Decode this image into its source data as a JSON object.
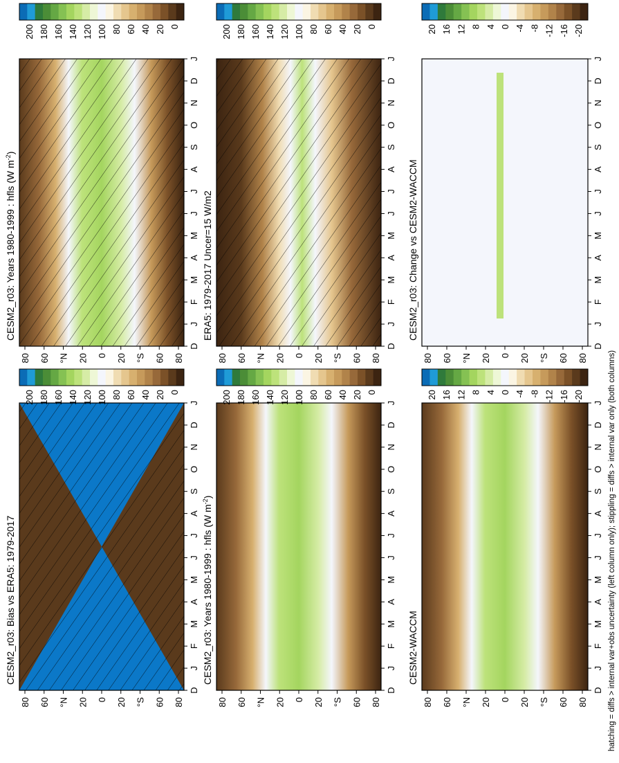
{
  "caption": "hatching = diffs > internal var+obs uncertainty (left column only); stippling = diffs > internal var only (both columns)",
  "colors": {
    "scale": [
      "#3c2411",
      "#5a3a1c",
      "#7b5128",
      "#97693a",
      "#b1834a",
      "#c69a5b",
      "#d7b06f",
      "#e5c68e",
      "#f0dcb2",
      "#fbf5e3",
      "#f4f6fc",
      "#eef7d6",
      "#d6eca6",
      "#bde27b",
      "#a4d55f",
      "#85c153",
      "#65a844",
      "#4b8d37",
      "#2f7a3b",
      "#1f9bd7",
      "#0b6cb6"
    ]
  },
  "colorbars": [
    {
      "name": "absolute",
      "labels": [
        "200",
        "180",
        "160",
        "140",
        "120",
        "100",
        "80",
        "60",
        "40",
        "20",
        "0"
      ]
    },
    {
      "name": "difference",
      "labels": [
        "20",
        "16",
        "12",
        "8",
        "4",
        "0",
        "-4",
        "-8",
        "-12",
        "-16",
        "-20"
      ]
    }
  ],
  "chart_data": [
    {
      "type": "heatmap",
      "title": "CESM2_r03: Years 1980-1999 : hfls (W m",
      "title_sup": "-2",
      "title_tail": ")",
      "x_categories": [
        "D",
        "J",
        "F",
        "M",
        "A",
        "M",
        "J",
        "J",
        "A",
        "S",
        "O",
        "N",
        "D",
        "J"
      ],
      "y_ticks": [
        "80",
        "60",
        "°N",
        "20",
        "0",
        "20",
        "°S",
        "60",
        "80"
      ],
      "colorbar": "absolute",
      "hatching": "lines"
    },
    {
      "type": "heatmap",
      "title": "CESM2_r03: Years 1980-1999 : hfls (W m",
      "title_sup": "-2",
      "title_tail": ")",
      "x_categories": [
        "D",
        "J",
        "F",
        "M",
        "A",
        "M",
        "J",
        "J",
        "A",
        "S",
        "O",
        "N",
        "D",
        "J"
      ],
      "y_ticks": [
        "80",
        "60",
        "°N",
        "20",
        "0",
        "20",
        "°S",
        "60",
        "80"
      ],
      "colorbar": "absolute",
      "hatching": "none"
    },
    {
      "type": "heatmap",
      "title": "ERA5: 1979-2017 Uncer=15 W/m2",
      "title_sup": "",
      "title_tail": "",
      "x_categories": [
        "D",
        "J",
        "F",
        "M",
        "A",
        "M",
        "J",
        "J",
        "A",
        "S",
        "O",
        "N",
        "D",
        "J"
      ],
      "y_ticks": [
        "80",
        "60",
        "°N",
        "20",
        "0",
        "20",
        "°S",
        "60",
        "80"
      ],
      "colorbar": "absolute",
      "hatching": "lines"
    },
    {
      "type": "heatmap",
      "title": "CESM2-WACCM",
      "title_sup": "",
      "title_tail": "",
      "x_categories": [
        "D",
        "J",
        "F",
        "M",
        "A",
        "M",
        "J",
        "J",
        "A",
        "S",
        "O",
        "N",
        "D",
        "J"
      ],
      "y_ticks": [
        "80",
        "60",
        "°N",
        "20",
        "0",
        "20",
        "°S",
        "60",
        "80"
      ],
      "colorbar": "absolute",
      "hatching": "none"
    },
    {
      "type": "heatmap",
      "title": "CESM2_r03: Bias vs ERA5: 1979-2017",
      "title_sup": "",
      "title_tail": "",
      "x_categories": [
        "D",
        "J",
        "F",
        "M",
        "A",
        "M",
        "J",
        "J",
        "A",
        "S",
        "O",
        "N",
        "D",
        "J"
      ],
      "y_ticks": [
        "80",
        "60",
        "°N",
        "20",
        "0",
        "20",
        "°S",
        "60",
        "80"
      ],
      "colorbar": "difference",
      "hatching": "lines"
    },
    {
      "type": "heatmap",
      "title": "CESM2_r03: Change vs CESM2-WACCM",
      "title_sup": "",
      "title_tail": "",
      "x_categories": [
        "D",
        "J",
        "F",
        "M",
        "A",
        "M",
        "J",
        "J",
        "A",
        "S",
        "O",
        "N",
        "D",
        "J"
      ],
      "y_ticks": [
        "80",
        "60",
        "°N",
        "20",
        "0",
        "20",
        "°S",
        "60",
        "80"
      ],
      "colorbar": "difference",
      "hatching": "none"
    }
  ]
}
